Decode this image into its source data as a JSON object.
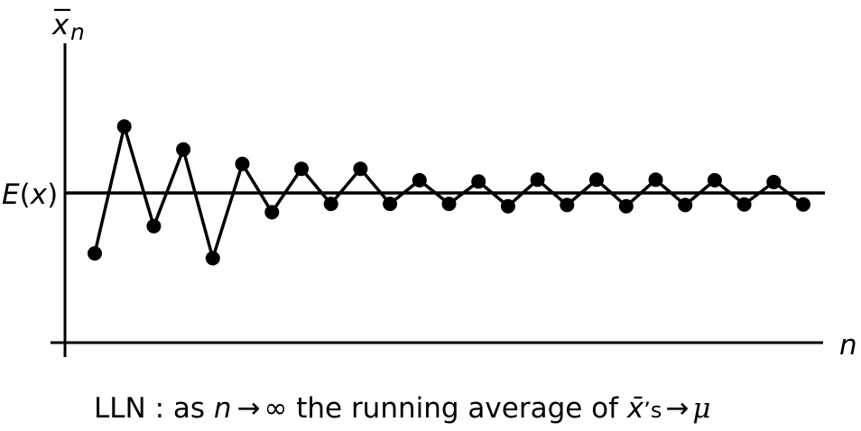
{
  "chart_data": {
    "type": "line",
    "ylabel": "x̄n",
    "xlabel": "n",
    "reference_line": {
      "label": "E(x)",
      "value": 0
    },
    "caption": {
      "prefix": "LLN : as ",
      "n": "n",
      "arrow1": "→",
      "infinity": "∞",
      "middle": " the running average of ",
      "xbar": "x̄",
      "apos": "’s",
      "arrow2": "→",
      "mu": "μ"
    },
    "grid": false,
    "legend": "none",
    "xlim": [
      0,
      27
    ],
    "ylim": [
      -2.5,
      1.2
    ],
    "series": [
      {
        "values": [
          -1.0,
          1.1,
          -0.55,
          0.72,
          -1.08,
          0.48,
          -0.32,
          0.4,
          -0.18,
          0.4,
          -0.18,
          0.21,
          -0.18,
          0.19,
          -0.22,
          0.22,
          -0.2,
          0.22,
          -0.22,
          0.22,
          -0.2,
          0.21,
          -0.19,
          0.18,
          -0.19
        ]
      }
    ]
  }
}
